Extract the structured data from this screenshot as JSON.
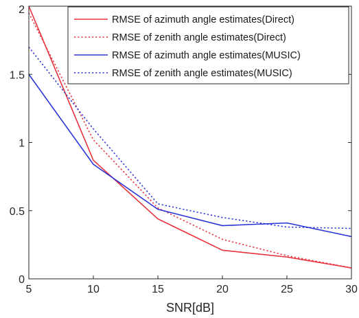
{
  "chart_data": {
    "type": "line",
    "title": "",
    "xlabel": "SNR[dB]",
    "ylabel": "",
    "xlim": [
      5,
      30
    ],
    "ylim": [
      0,
      2
    ],
    "x": [
      5,
      10,
      15,
      20,
      25,
      30
    ],
    "x_ticks": [
      "5",
      "10",
      "15",
      "20",
      "25",
      "30"
    ],
    "y_ticks": [
      "0",
      "0.5",
      "1",
      "1.5",
      "2"
    ],
    "grid": false,
    "legend_position": "top-right",
    "series": [
      {
        "name": "RMSE of azimuth angle estimates(Direct)",
        "values": [
          2.0,
          0.87,
          0.44,
          0.21,
          0.16,
          0.08
        ],
        "color": "#e8303a",
        "style": "solid"
      },
      {
        "name": "RMSE of zenith angle estimates(Direct)",
        "values": [
          1.95,
          1.02,
          0.52,
          0.29,
          0.17,
          0.08
        ],
        "color": "#e8303a",
        "style": "dotted"
      },
      {
        "name": "RMSE of azimuth angle estimates(MUSIC)",
        "values": [
          1.5,
          0.84,
          0.51,
          0.39,
          0.41,
          0.31
        ],
        "color": "#2a34d6",
        "style": "solid"
      },
      {
        "name": "RMSE of zenith angle estimates(MUSIC)",
        "values": [
          1.7,
          1.1,
          0.55,
          0.45,
          0.38,
          0.37
        ],
        "color": "#2a34d6",
        "style": "dotted"
      }
    ]
  }
}
